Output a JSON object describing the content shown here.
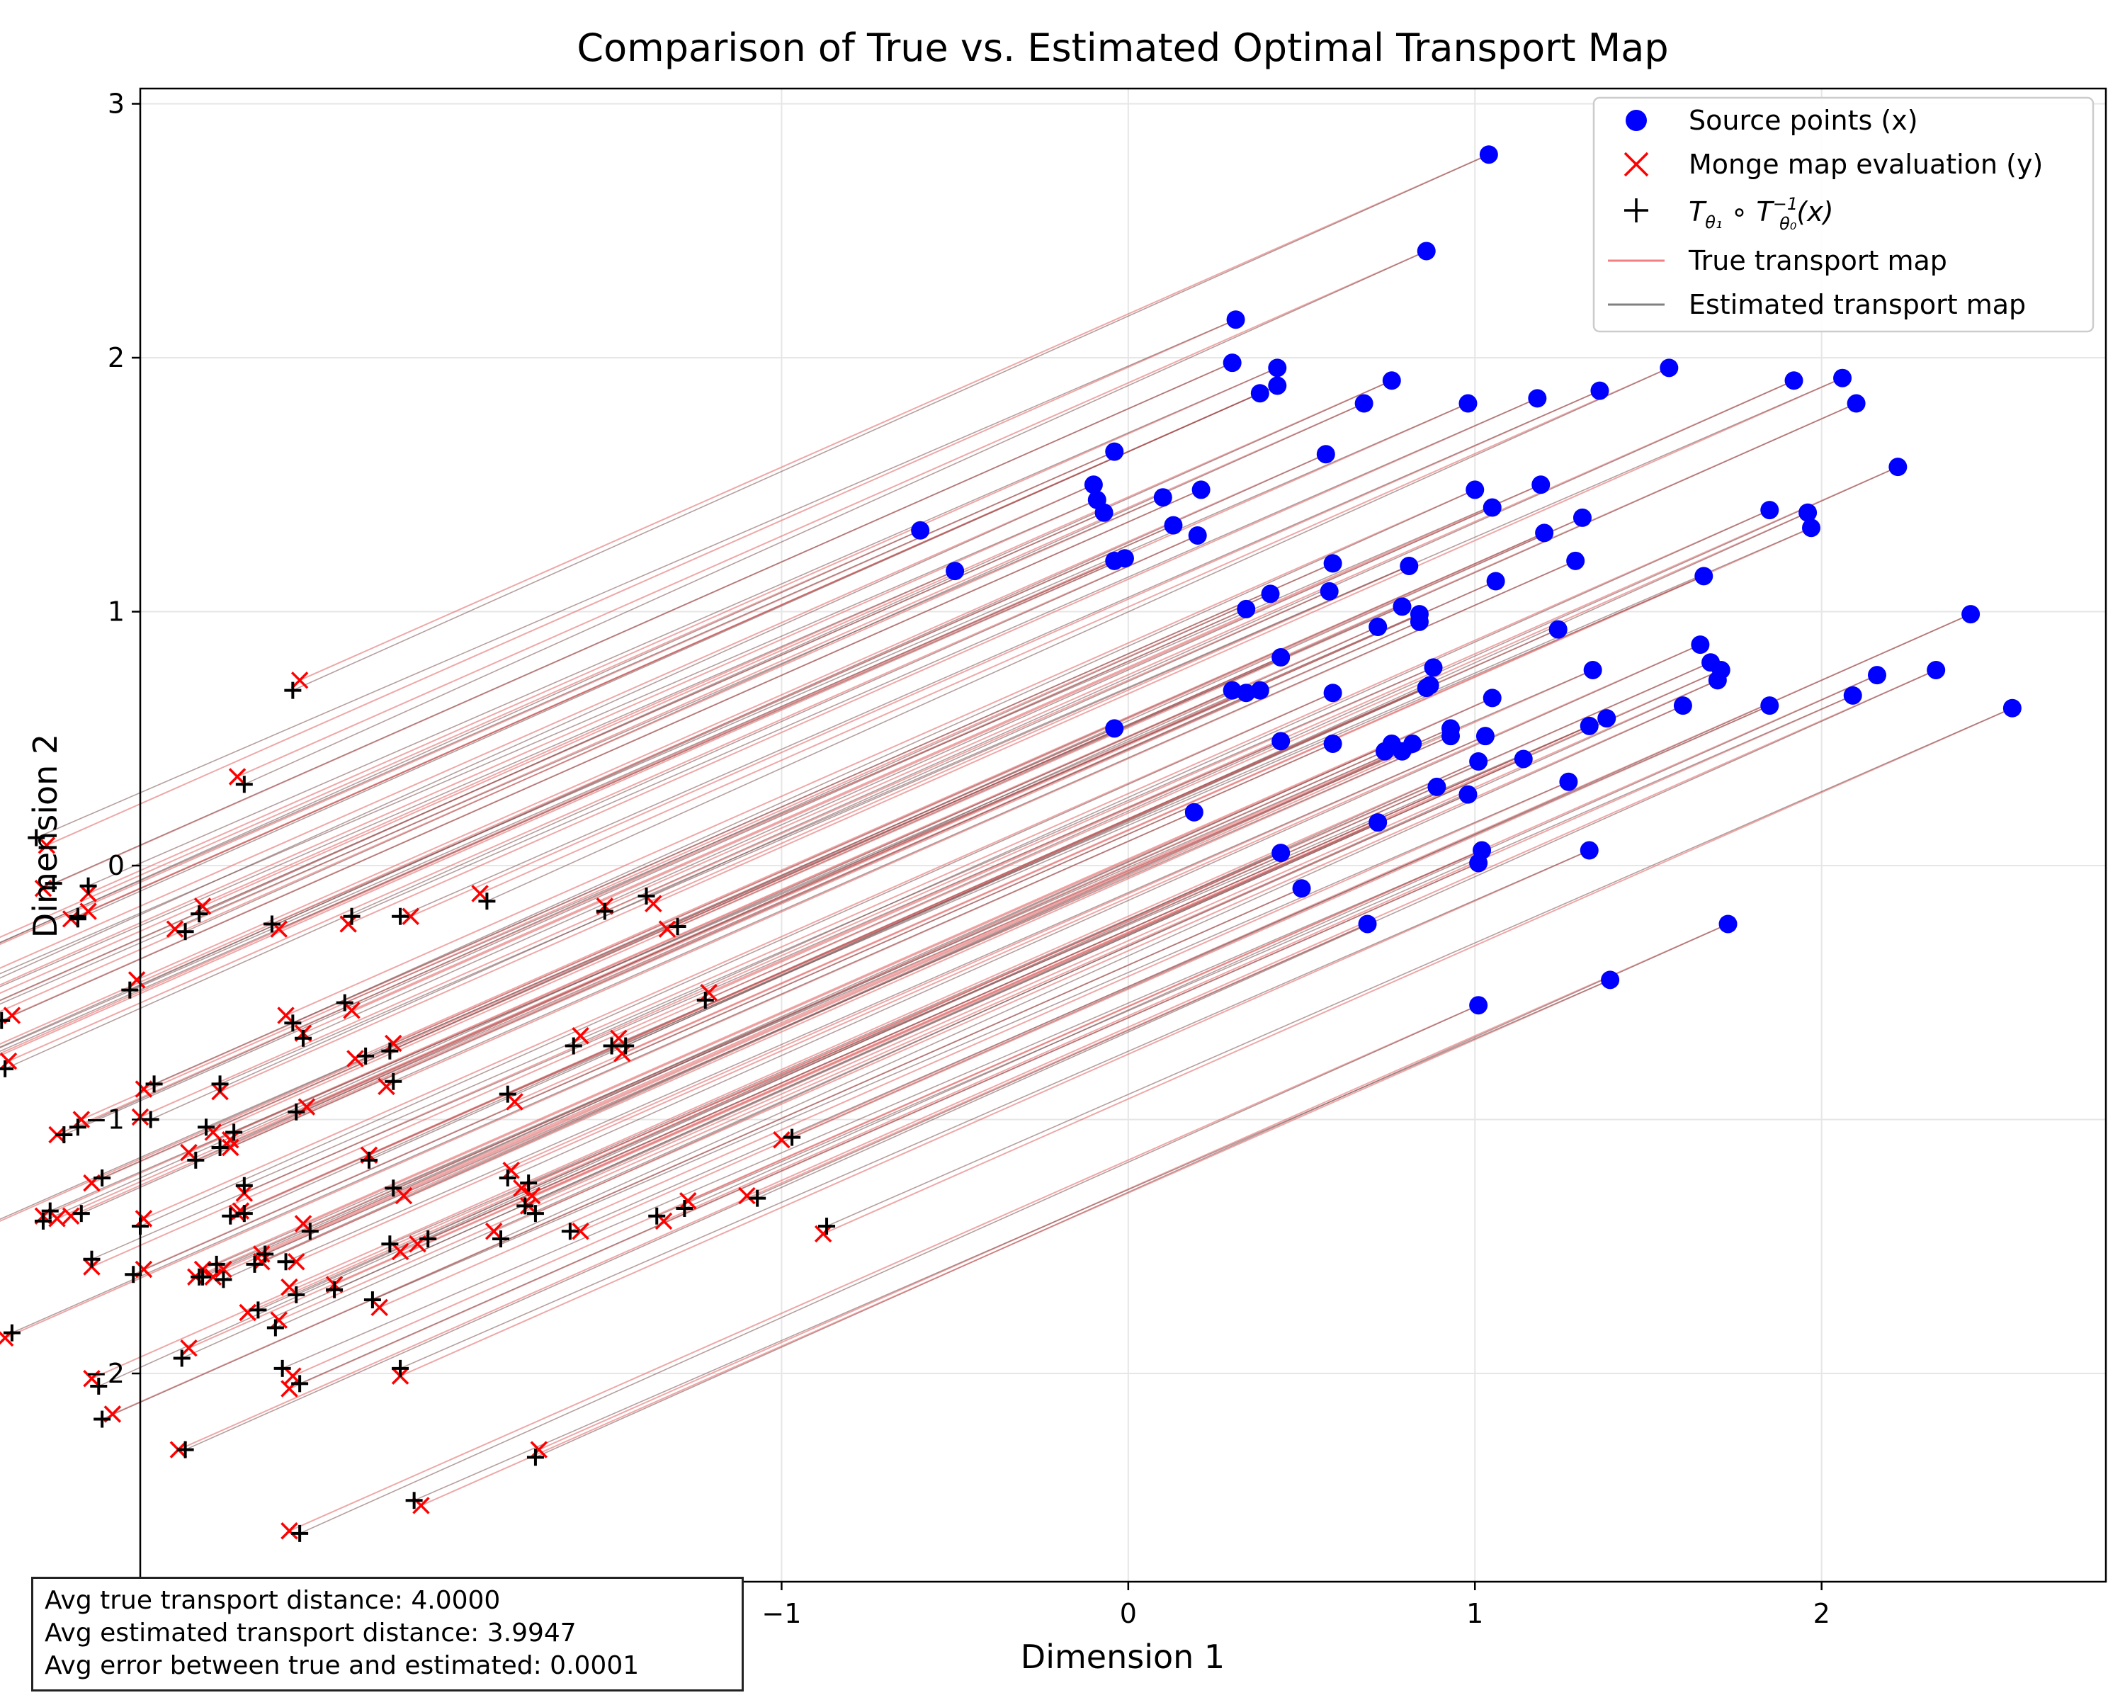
{
  "chart_data": {
    "type": "scatter",
    "title": "Comparison of True vs. Estimated Optimal Transport Map",
    "xlabel": "Dimension 1",
    "ylabel": "Dimension 2",
    "xlim": [
      -2.85,
      2.82
    ],
    "ylim": [
      -2.82,
      3.06
    ],
    "xticks": [
      -1,
      0,
      1,
      2
    ],
    "yticks": [
      -2,
      -1,
      0,
      1,
      2,
      3
    ],
    "xtick_labels": [
      "−1",
      "0",
      "1",
      "2"
    ],
    "ytick_labels": [
      "−2",
      "−1",
      "0",
      "1",
      "2",
      "3"
    ],
    "grid": true,
    "legend_position": "top-right",
    "legend": [
      {
        "label": "Source points (x)",
        "marker": "circle",
        "color": "#0000ff"
      },
      {
        "label": "Monge map evaluation (y)",
        "marker": "x",
        "color": "#ff0000"
      },
      {
        "label": "T_θ1 ∘ T_θ0^-1(x)",
        "marker": "plus",
        "color": "#000000"
      },
      {
        "label": "True transport map",
        "marker": "line",
        "color": "#f08080"
      },
      {
        "label": "Estimated transport map",
        "marker": "line",
        "color": "#808080"
      }
    ],
    "colors": {
      "source": "#0000ff",
      "monge": "#ff0000",
      "estimated": "#000000",
      "true_line": "#e06060",
      "est_line": "#7a5050"
    },
    "shift": [
      -3.43,
      -2.07
    ],
    "source_points": [
      [
        1.04,
        2.8
      ],
      [
        0.86,
        2.42
      ],
      [
        0.31,
        2.15
      ],
      [
        0.3,
        1.98
      ],
      [
        0.43,
        1.96
      ],
      [
        0.43,
        1.89
      ],
      [
        0.38,
        1.86
      ],
      [
        0.76,
        1.91
      ],
      [
        0.68,
        1.82
      ],
      [
        0.98,
        1.82
      ],
      [
        1.18,
        1.84
      ],
      [
        1.36,
        1.87
      ],
      [
        1.56,
        1.96
      ],
      [
        1.92,
        1.91
      ],
      [
        2.06,
        1.92
      ],
      [
        2.1,
        1.82
      ],
      [
        2.22,
        1.57
      ],
      [
        -0.04,
        1.63
      ],
      [
        0.57,
        1.62
      ],
      [
        -0.1,
        1.5
      ],
      [
        -0.09,
        1.44
      ],
      [
        -0.07,
        1.39
      ],
      [
        0.1,
        1.45
      ],
      [
        0.21,
        1.48
      ],
      [
        0.13,
        1.34
      ],
      [
        0.2,
        1.3
      ],
      [
        -0.6,
        1.32
      ],
      [
        -0.5,
        1.16
      ],
      [
        -0.04,
        1.2
      ],
      [
        -0.01,
        1.21
      ],
      [
        1.0,
        1.48
      ],
      [
        1.05,
        1.41
      ],
      [
        1.19,
        1.5
      ],
      [
        1.2,
        1.31
      ],
      [
        1.31,
        1.37
      ],
      [
        1.29,
        1.2
      ],
      [
        1.85,
        1.4
      ],
      [
        1.96,
        1.39
      ],
      [
        1.97,
        1.33
      ],
      [
        0.59,
        1.19
      ],
      [
        0.81,
        1.18
      ],
      [
        1.06,
        1.12
      ],
      [
        0.34,
        1.01
      ],
      [
        0.41,
        1.07
      ],
      [
        0.58,
        1.08
      ],
      [
        0.79,
        1.02
      ],
      [
        0.84,
        0.99
      ],
      [
        0.84,
        0.96
      ],
      [
        0.72,
        0.94
      ],
      [
        1.24,
        0.93
      ],
      [
        1.66,
        1.14
      ],
      [
        2.43,
        0.99
      ],
      [
        1.65,
        0.87
      ],
      [
        1.68,
        0.8
      ],
      [
        1.71,
        0.77
      ],
      [
        1.7,
        0.73
      ],
      [
        1.34,
        0.77
      ],
      [
        0.44,
        0.82
      ],
      [
        0.88,
        0.78
      ],
      [
        0.87,
        0.71
      ],
      [
        0.86,
        0.7
      ],
      [
        2.16,
        0.75
      ],
      [
        2.33,
        0.77
      ],
      [
        2.09,
        0.67
      ],
      [
        2.55,
        0.62
      ],
      [
        1.85,
        0.63
      ],
      [
        1.6,
        0.63
      ],
      [
        0.3,
        0.69
      ],
      [
        0.34,
        0.68
      ],
      [
        0.38,
        0.69
      ],
      [
        0.59,
        0.68
      ],
      [
        -0.04,
        0.54
      ],
      [
        0.93,
        0.54
      ],
      [
        1.05,
        0.66
      ],
      [
        1.33,
        0.55
      ],
      [
        1.38,
        0.58
      ],
      [
        0.44,
        0.49
      ],
      [
        0.59,
        0.48
      ],
      [
        0.74,
        0.45
      ],
      [
        0.76,
        0.48
      ],
      [
        0.79,
        0.45
      ],
      [
        0.82,
        0.48
      ],
      [
        0.93,
        0.51
      ],
      [
        1.03,
        0.51
      ],
      [
        1.01,
        0.41
      ],
      [
        1.14,
        0.42
      ],
      [
        1.27,
        0.33
      ],
      [
        0.89,
        0.31
      ],
      [
        0.98,
        0.28
      ],
      [
        0.19,
        0.21
      ],
      [
        0.72,
        0.17
      ],
      [
        0.44,
        0.05
      ],
      [
        1.02,
        0.06
      ],
      [
        1.01,
        0.01
      ],
      [
        1.33,
        0.06
      ],
      [
        0.5,
        -0.09
      ],
      [
        0.69,
        -0.23
      ],
      [
        1.73,
        -0.23
      ],
      [
        1.01,
        -0.55
      ],
      [
        1.39,
        -0.45
      ]
    ],
    "estimation_offsets": [
      [
        -0.02,
        -0.04
      ],
      [
        0.02,
        -0.03
      ],
      [
        -0.03,
        0.03
      ],
      [
        0.03,
        0.02
      ],
      [
        0.0,
        0.03
      ],
      [
        -0.03,
        -0.02
      ],
      [
        0.02,
        0.0
      ],
      [
        -0.01,
        -0.03
      ],
      [
        0.03,
        -0.01
      ],
      [
        -0.02,
        0.02
      ],
      [
        0.01,
        0.03
      ],
      [
        -0.03,
        0.0
      ],
      [
        0.02,
        -0.03
      ],
      [
        0.0,
        -0.02
      ],
      [
        -0.02,
        0.03
      ],
      [
        0.03,
        0.01
      ],
      [
        -0.01,
        -0.03
      ],
      [
        0.02,
        0.02
      ]
    ]
  }
}
